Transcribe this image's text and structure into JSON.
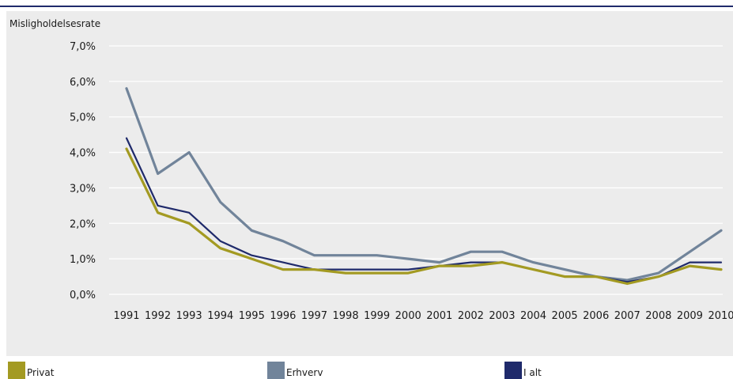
{
  "chart_data": {
    "type": "line",
    "title": "",
    "xlabel": "",
    "ylabel": "Misligholdelsesrate",
    "x": [
      "1991",
      "1992",
      "1993",
      "1994",
      "1995",
      "1996",
      "1997",
      "1998",
      "1999",
      "2000",
      "2001",
      "2002",
      "2003",
      "2004",
      "2005",
      "2006",
      "2007",
      "2008",
      "2009",
      "2010"
    ],
    "yticks": [
      "0,0%",
      "1,0%",
      "2,0%",
      "3,0%",
      "4,0%",
      "5,0%",
      "6,0%",
      "7,0%"
    ],
    "ylim": [
      0,
      7
    ],
    "grid": true,
    "legend_position": "bottom",
    "series": [
      {
        "name": "Privat",
        "color": "#a39a22",
        "values": [
          4.1,
          2.3,
          2.0,
          1.3,
          1.0,
          0.7,
          0.7,
          0.6,
          0.6,
          0.6,
          0.8,
          0.8,
          0.9,
          0.7,
          0.5,
          0.5,
          0.3,
          0.5,
          0.8,
          0.7
        ]
      },
      {
        "name": "Erhverv",
        "color": "#71849a",
        "values": [
          5.8,
          3.4,
          4.0,
          2.6,
          1.8,
          1.5,
          1.1,
          1.1,
          1.1,
          1.0,
          0.9,
          1.2,
          1.2,
          0.9,
          0.7,
          0.5,
          0.4,
          0.6,
          1.2,
          1.8
        ]
      },
      {
        "name": "I alt",
        "color": "#1f2a6b",
        "values": [
          4.4,
          2.5,
          2.3,
          1.5,
          1.1,
          0.9,
          0.7,
          0.7,
          0.7,
          0.7,
          0.8,
          0.9,
          0.9,
          0.7,
          0.5,
          0.5,
          0.35,
          0.5,
          0.9,
          0.9
        ]
      }
    ]
  }
}
